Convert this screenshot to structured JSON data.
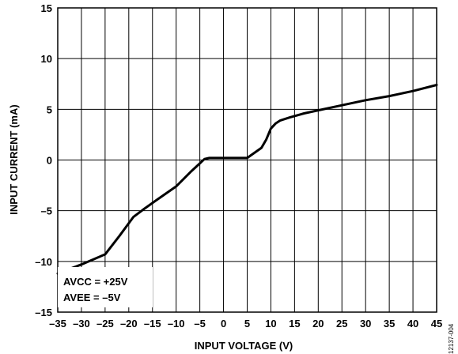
{
  "chart_data": {
    "type": "line",
    "title": "",
    "xlabel": "INPUT VOLTAGE (V)",
    "ylabel": "INPUT CURRENT (mA)",
    "xlim": [
      -35,
      45
    ],
    "ylim": [
      -15,
      15
    ],
    "xticks": [
      -35,
      -30,
      -25,
      -20,
      -15,
      -10,
      -5,
      0,
      5,
      10,
      15,
      20,
      25,
      30,
      35,
      40,
      45
    ],
    "xtick_labels": [
      "–35",
      "–30",
      "–25",
      "–20",
      "–15",
      "–10",
      "–5",
      "0",
      "5",
      "10",
      "15",
      "20",
      "25",
      "30",
      "35",
      "40",
      "45"
    ],
    "yticks": [
      -15,
      -10,
      -5,
      0,
      5,
      10,
      15
    ],
    "ytick_labels": [
      "–15",
      "–10",
      "–5",
      "0",
      "5",
      "10",
      "15"
    ],
    "grid": true,
    "series": [
      {
        "x": [
          -35,
          -30,
          -25,
          -22,
          -19,
          -17,
          -14,
          -10,
          -7,
          -4,
          -3,
          0,
          5,
          8,
          9,
          10,
          11,
          12,
          14,
          17,
          20,
          25,
          30,
          35,
          40,
          45
        ],
        "y": [
          -11.2,
          -10.3,
          -9.3,
          -7.5,
          -5.6,
          -4.9,
          -3.9,
          -2.6,
          -1.2,
          0.1,
          0.2,
          0.2,
          0.2,
          1.2,
          2.0,
          3.1,
          3.6,
          3.9,
          4.2,
          4.6,
          4.9,
          5.4,
          5.9,
          6.3,
          6.8,
          7.4
        ]
      }
    ],
    "annotations": [
      "AVCC = +25V",
      "AVEE = –5V"
    ]
  },
  "figure_id": "12137-004"
}
